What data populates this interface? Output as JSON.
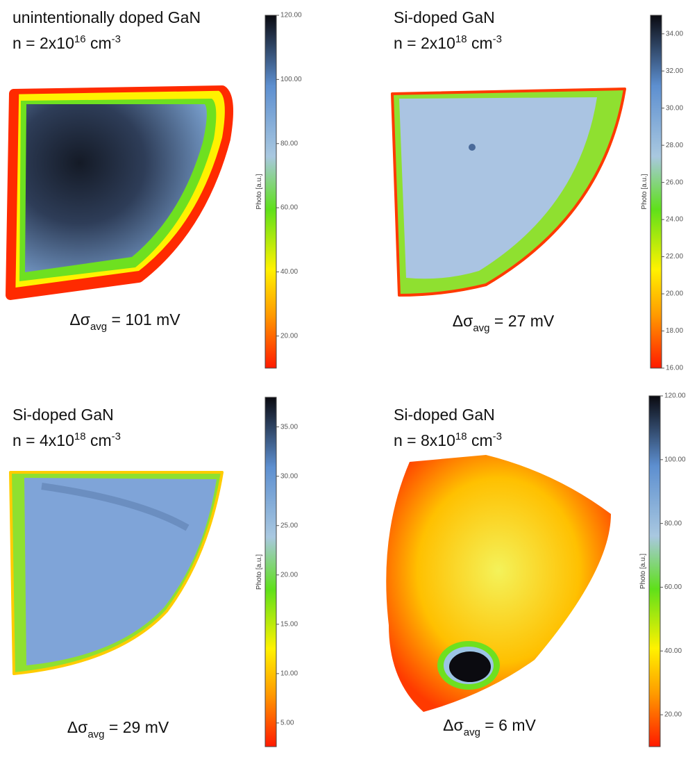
{
  "panels": [
    {
      "title": "unintentionally doped GaN",
      "density": {
        "prefix": "n = 2x10",
        "exponent": "16",
        "unit": " cm",
        "unit_exponent": "-3"
      },
      "delta": {
        "symbol": "Δσ",
        "subscript": "avg",
        "text": " = 101 mV"
      },
      "colorbar": {
        "label": "Photo [a.u.]",
        "lim": [
          10,
          120
        ],
        "ticks": [
          {
            "value": 20,
            "label": "20.00"
          },
          {
            "value": 40,
            "label": "40.00"
          },
          {
            "value": 60,
            "label": "60.00"
          },
          {
            "value": 80,
            "label": "80.00"
          },
          {
            "value": 100,
            "label": "100.00"
          },
          {
            "value": 120,
            "label": "120.00"
          }
        ]
      }
    },
    {
      "title": "Si-doped GaN",
      "density": {
        "prefix": "n = 2x10",
        "exponent": "18",
        "unit": " cm",
        "unit_exponent": "-3"
      },
      "delta": {
        "symbol": "Δσ",
        "subscript": "avg",
        "text": " = 27 mV"
      },
      "colorbar": {
        "label": "Photo [a.u.]",
        "lim": [
          16,
          35
        ],
        "ticks": [
          {
            "value": 16,
            "label": "16.00"
          },
          {
            "value": 18,
            "label": "18.00"
          },
          {
            "value": 20,
            "label": "20.00"
          },
          {
            "value": 22,
            "label": "22.00"
          },
          {
            "value": 24,
            "label": "24.00"
          },
          {
            "value": 26,
            "label": "26.00"
          },
          {
            "value": 28,
            "label": "28.00"
          },
          {
            "value": 30,
            "label": "30.00"
          },
          {
            "value": 32,
            "label": "32.00"
          },
          {
            "value": 34,
            "label": "34.00"
          }
        ]
      }
    },
    {
      "title": "Si-doped GaN",
      "density": {
        "prefix": "n = 4x10",
        "exponent": "18",
        "unit": " cm",
        "unit_exponent": "-3"
      },
      "delta": {
        "symbol": "Δσ",
        "subscript": "avg",
        "text": " = 29 mV"
      },
      "colorbar": {
        "label": "Photo [a.u.]",
        "lim": [
          2.6,
          38
        ],
        "ticks": [
          {
            "value": 5,
            "label": "5.00"
          },
          {
            "value": 10,
            "label": "10.00"
          },
          {
            "value": 15,
            "label": "15.00"
          },
          {
            "value": 20,
            "label": "20.00"
          },
          {
            "value": 25,
            "label": "25.00"
          },
          {
            "value": 30,
            "label": "30.00"
          },
          {
            "value": 35,
            "label": "35.00"
          }
        ]
      }
    },
    {
      "title": "Si-doped GaN",
      "density": {
        "prefix": "n = 8x10",
        "exponent": "18",
        "unit": " cm",
        "unit_exponent": "-3"
      },
      "delta": {
        "symbol": "Δσ",
        "subscript": "avg",
        "text": " = 6 mV"
      },
      "colorbar": {
        "label": "Photo [a.u.]",
        "lim": [
          10,
          120
        ],
        "ticks": [
          {
            "value": 20,
            "label": "20.00"
          },
          {
            "value": 40,
            "label": "40.00"
          },
          {
            "value": 60,
            "label": "60.00"
          },
          {
            "value": 80,
            "label": "80.00"
          },
          {
            "value": 100,
            "label": "100.00"
          },
          {
            "value": 120,
            "label": "120.00"
          }
        ]
      }
    }
  ]
}
